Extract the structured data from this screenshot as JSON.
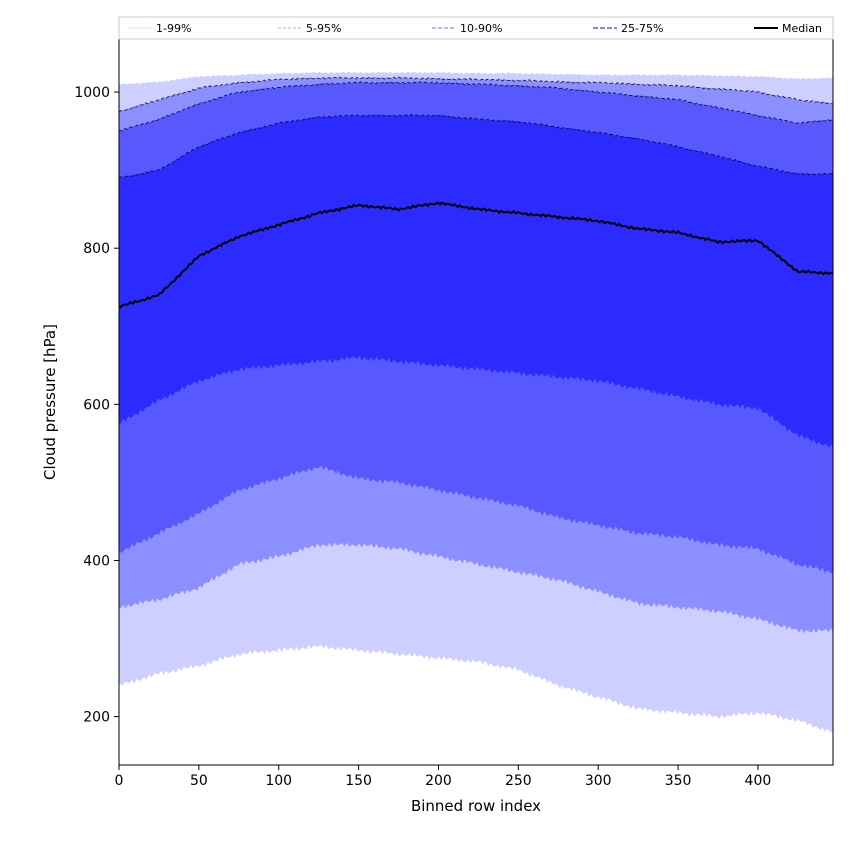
{
  "chart_data": {
    "type": "area",
    "title": "",
    "xlabel": "Binned row index",
    "ylabel": "Cloud pressure [hPa]",
    "xlim": [
      0,
      447
    ],
    "ylim": [
      138,
      1068
    ],
    "x_ticks": [
      0,
      50,
      100,
      150,
      200,
      250,
      300,
      350,
      400
    ],
    "y_ticks": [
      200,
      400,
      600,
      800,
      1000
    ],
    "legend": {
      "placement": "top",
      "entries": [
        {
          "label": "1-99%",
          "style": "thin-light"
        },
        {
          "label": "5-95%",
          "style": "thin-dashed"
        },
        {
          "label": "10-90%",
          "style": "dashed"
        },
        {
          "label": "25-75%",
          "style": "dashed-dark"
        },
        {
          "label": "Median",
          "style": "solid-black"
        }
      ]
    },
    "x": [
      0,
      25,
      50,
      75,
      100,
      125,
      150,
      175,
      200,
      225,
      250,
      275,
      300,
      325,
      350,
      375,
      400,
      425,
      447
    ],
    "bands": [
      {
        "name": "1-99%",
        "color": "#cccfff",
        "lower": [
          240,
          255,
          265,
          280,
          285,
          290,
          285,
          280,
          275,
          270,
          260,
          240,
          225,
          210,
          205,
          200,
          205,
          195,
          180
        ],
        "upper": [
          1010,
          1013,
          1020,
          1022,
          1024,
          1025,
          1025,
          1025,
          1025,
          1024,
          1024,
          1023,
          1022,
          1022,
          1022,
          1021,
          1020,
          1017,
          1018
        ]
      },
      {
        "name": "5-95%",
        "color": "#8c8fff",
        "lower": [
          340,
          350,
          365,
          395,
          405,
          420,
          420,
          415,
          405,
          395,
          385,
          375,
          360,
          345,
          340,
          335,
          325,
          310,
          310
        ],
        "upper": [
          975,
          990,
          1005,
          1012,
          1016,
          1018,
          1018,
          1018,
          1017,
          1016,
          1015,
          1013,
          1012,
          1010,
          1008,
          1004,
          1000,
          990,
          985
        ]
      },
      {
        "name": "10-90%",
        "color": "#5858ff",
        "lower": [
          410,
          435,
          460,
          490,
          505,
          520,
          505,
          500,
          490,
          480,
          470,
          455,
          445,
          435,
          430,
          420,
          415,
          395,
          385
        ],
        "upper": [
          950,
          965,
          985,
          1000,
          1006,
          1010,
          1012,
          1012,
          1012,
          1010,
          1008,
          1005,
          1000,
          995,
          990,
          980,
          970,
          960,
          965
        ]
      },
      {
        "name": "25-75%",
        "color": "#2b2bff",
        "lower": [
          575,
          605,
          630,
          645,
          650,
          655,
          660,
          655,
          650,
          645,
          640,
          635,
          630,
          620,
          610,
          600,
          595,
          560,
          545
        ],
        "upper": [
          890,
          900,
          930,
          948,
          960,
          968,
          970,
          970,
          970,
          965,
          962,
          955,
          948,
          940,
          930,
          918,
          905,
          895,
          895
        ]
      }
    ],
    "median": [
      725,
      740,
      790,
      815,
      830,
      845,
      855,
      850,
      858,
      850,
      845,
      840,
      835,
      825,
      820,
      808,
      810,
      770,
      768
    ]
  }
}
